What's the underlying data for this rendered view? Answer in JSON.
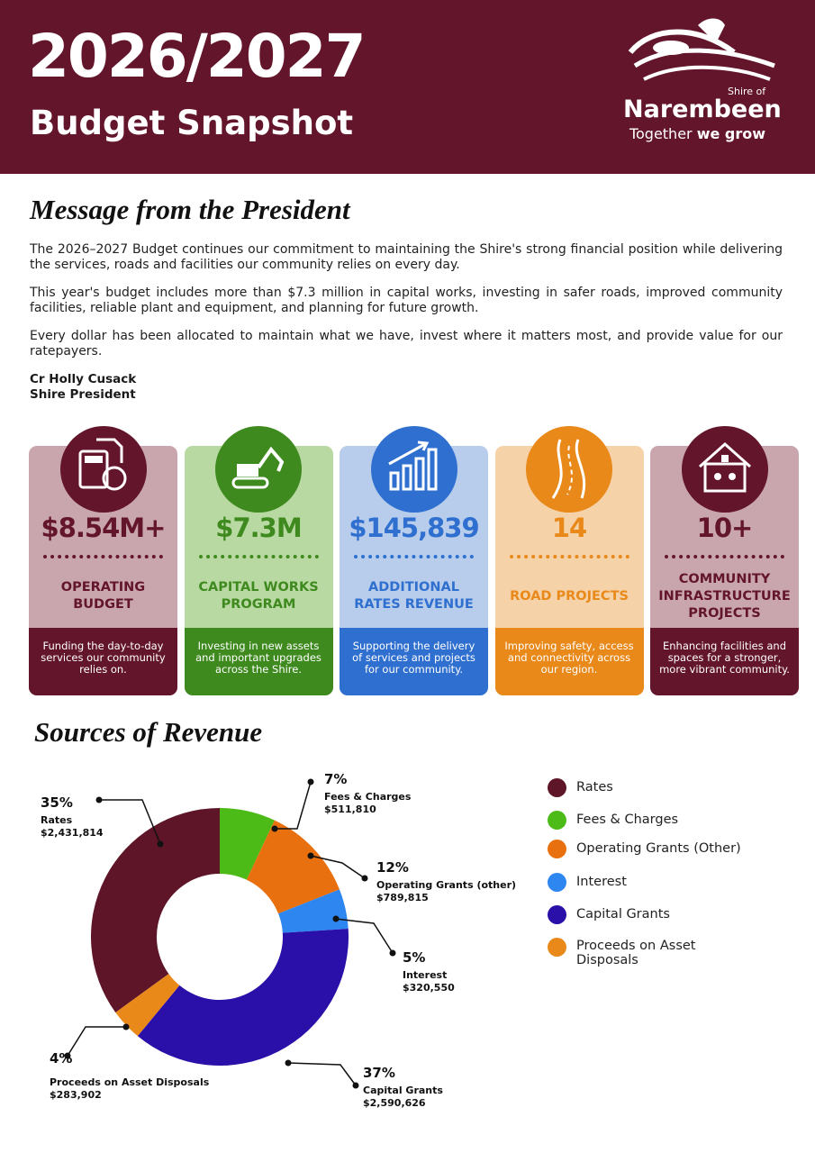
{
  "header": {
    "year": "2026/2027",
    "title": "Budget Snapshot",
    "logo": {
      "shire_of": "Shire of",
      "name": "Narembeen",
      "tagline_plain": "Together",
      "tagline_bold": "we grow"
    }
  },
  "message": {
    "heading": "Message from the President",
    "paragraphs": [
      "The 2026–2027 Budget continues our commitment to maintaining the Shire's strong financial position while delivering the services, roads and facilities our community relies on every day.",
      "This year's budget includes more than $7.3 million in capital works, investing in safer roads, improved community facilities, reliable plant and equipment, and planning for future growth.",
      "Every dollar has been allocated to maintain what we have, invest where it matters most, and provide value for our ratepayers."
    ],
    "signature": {
      "name": "Cr Holly Cusack",
      "role": "Shire President"
    }
  },
  "cards": [
    {
      "value": "$8.54M+",
      "label": "OPERATING BUDGET",
      "description": "Funding the day-to-day services our community relies on."
    },
    {
      "value": "$7.3M",
      "label": "CAPITAL WORKS PROGRAM",
      "description": "Investing in new assets and important upgrades across the Shire."
    },
    {
      "value": "$145,839",
      "label": "ADDITIONAL RATES REVENUE",
      "description": "Supporting the delivery of services and projects for our community."
    },
    {
      "value": "14",
      "label": "ROAD PROJECTS",
      "description": "Improving safety, access and connectivity across our region."
    },
    {
      "value": "10+",
      "label": "COMMUNITY INFRASTRUCTURE PROJECTS",
      "description": "Enhancing facilities and spaces for a stronger, more vibrant community."
    }
  ],
  "revenue": {
    "heading": "Sources of Revenue",
    "chart": {
      "type": "pie",
      "categories": [
        "Rates",
        "Fees & Charges",
        "Operating Grants (other)",
        "Interest",
        "Capital Grants",
        "Proceeds on Asset Disposals"
      ],
      "values": [
        35,
        7,
        12,
        5,
        37,
        4
      ],
      "value_labels": [
        "35%",
        "7%",
        "12%",
        "5%",
        "37%",
        "4%"
      ],
      "amounts": [
        "$2,431,814",
        "$511,810",
        "$789,815",
        "$320,550",
        "$2,590,626",
        "$283,902"
      ],
      "colors": [
        "#5e1528",
        "#4cbb17",
        "#e8700e",
        "#2e86f0",
        "#2a0fa8",
        "#e8891a"
      ],
      "legend": [
        "Rates",
        "Fees & Charges",
        "Operating Grants (Other)",
        "Interest",
        "Capital Grants",
        "Proceeds on Asset Disposals"
      ]
    }
  }
}
